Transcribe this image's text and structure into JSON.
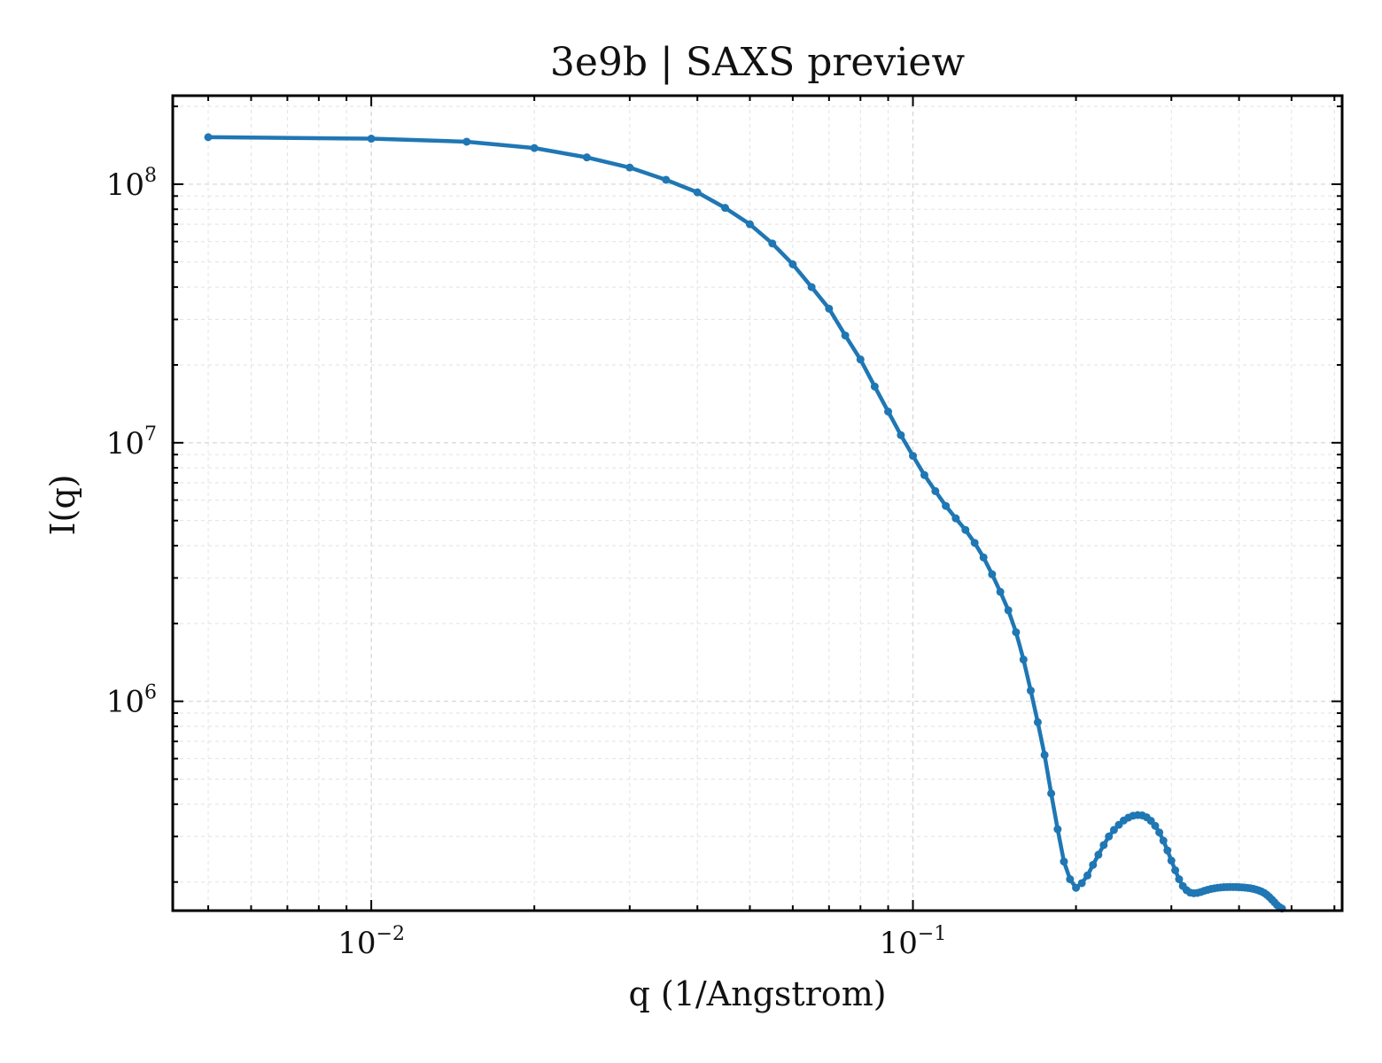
{
  "chart_data": {
    "type": "line",
    "title": "3e9b | SAXS preview",
    "xlabel": "q (1/Angstrom)",
    "ylabel": "I(q)",
    "xscale": "log",
    "yscale": "log",
    "xlim": [
      0.0043,
      0.62
    ],
    "ylim": [
      155000,
      220000000
    ],
    "grid": "major and minor, dashed",
    "ticks_direction": "in",
    "x_ticks": [
      {
        "mantissa": "10",
        "exponent": "−2",
        "value": 0.01
      },
      {
        "mantissa": "10",
        "exponent": "−1",
        "value": 0.1
      }
    ],
    "y_ticks": [
      {
        "mantissa": "10",
        "exponent": "6",
        "value": 1000000
      },
      {
        "mantissa": "10",
        "exponent": "7",
        "value": 10000000
      },
      {
        "mantissa": "10",
        "exponent": "8",
        "value": 100000000
      }
    ],
    "series": [
      {
        "color": "#1f77b4",
        "marker": "circle",
        "points": [
          [
            0.005,
            152000000
          ],
          [
            0.01,
            150000000
          ],
          [
            0.015,
            146000000
          ],
          [
            0.02,
            138000000
          ],
          [
            0.025,
            127000000
          ],
          [
            0.03,
            116000000
          ],
          [
            0.035,
            104000000
          ],
          [
            0.04,
            93000000
          ],
          [
            0.045,
            81000000
          ],
          [
            0.05,
            70000000
          ],
          [
            0.055,
            59000000
          ],
          [
            0.06,
            49000000
          ],
          [
            0.065,
            40000000
          ],
          [
            0.07,
            33000000
          ],
          [
            0.075,
            26000000
          ],
          [
            0.08,
            21000000
          ],
          [
            0.085,
            16500000
          ],
          [
            0.09,
            13200000
          ],
          [
            0.095,
            10700000
          ],
          [
            0.1,
            8900000
          ],
          [
            0.105,
            7500000
          ],
          [
            0.11,
            6500000
          ],
          [
            0.115,
            5700000
          ],
          [
            0.12,
            5100000
          ],
          [
            0.125,
            4600000
          ],
          [
            0.13,
            4100000
          ],
          [
            0.135,
            3600000
          ],
          [
            0.14,
            3100000
          ],
          [
            0.145,
            2650000
          ],
          [
            0.15,
            2250000
          ],
          [
            0.155,
            1850000
          ],
          [
            0.16,
            1450000
          ],
          [
            0.165,
            1100000
          ],
          [
            0.17,
            830000
          ],
          [
            0.175,
            620000
          ],
          [
            0.18,
            440000
          ],
          [
            0.185,
            320000
          ],
          [
            0.19,
            240000
          ],
          [
            0.195,
            205000
          ],
          [
            0.2,
            190000
          ],
          [
            0.205,
            198000
          ],
          [
            0.21,
            212000
          ],
          [
            0.215,
            233000
          ],
          [
            0.22,
            255000
          ],
          [
            0.225,
            278000
          ],
          [
            0.23,
            300000
          ],
          [
            0.235,
            318000
          ],
          [
            0.24,
            333000
          ],
          [
            0.245,
            346000
          ],
          [
            0.25,
            355000
          ],
          [
            0.255,
            361000
          ],
          [
            0.26,
            363000
          ],
          [
            0.265,
            362000
          ],
          [
            0.27,
            356000
          ],
          [
            0.275,
            345000
          ],
          [
            0.28,
            330000
          ],
          [
            0.285,
            311000
          ],
          [
            0.29,
            289000
          ],
          [
            0.295,
            265000
          ],
          [
            0.3,
            242000
          ],
          [
            0.305,
            222000
          ],
          [
            0.31,
            205000
          ],
          [
            0.315,
            193000
          ],
          [
            0.32,
            186000
          ],
          [
            0.325,
            182000
          ],
          [
            0.33,
            181000
          ],
          [
            0.335,
            181500
          ],
          [
            0.34,
            183000
          ],
          [
            0.345,
            185000
          ],
          [
            0.35,
            186500
          ],
          [
            0.355,
            188000
          ],
          [
            0.36,
            189000
          ],
          [
            0.365,
            190000
          ],
          [
            0.37,
            190500
          ],
          [
            0.375,
            191000
          ],
          [
            0.38,
            191200
          ],
          [
            0.385,
            191300
          ],
          [
            0.39,
            191300
          ],
          [
            0.395,
            191200
          ],
          [
            0.4,
            191000
          ],
          [
            0.405,
            190700
          ],
          [
            0.41,
            190300
          ],
          [
            0.415,
            189800
          ],
          [
            0.42,
            189100
          ],
          [
            0.425,
            188200
          ],
          [
            0.43,
            187000
          ],
          [
            0.435,
            185500
          ],
          [
            0.44,
            183800
          ],
          [
            0.445,
            181500
          ],
          [
            0.45,
            178500
          ],
          [
            0.455,
            175000
          ],
          [
            0.46,
            171000
          ],
          [
            0.465,
            167000
          ],
          [
            0.47,
            163000
          ],
          [
            0.475,
            160000
          ],
          [
            0.48,
            158000
          ]
        ]
      }
    ]
  }
}
